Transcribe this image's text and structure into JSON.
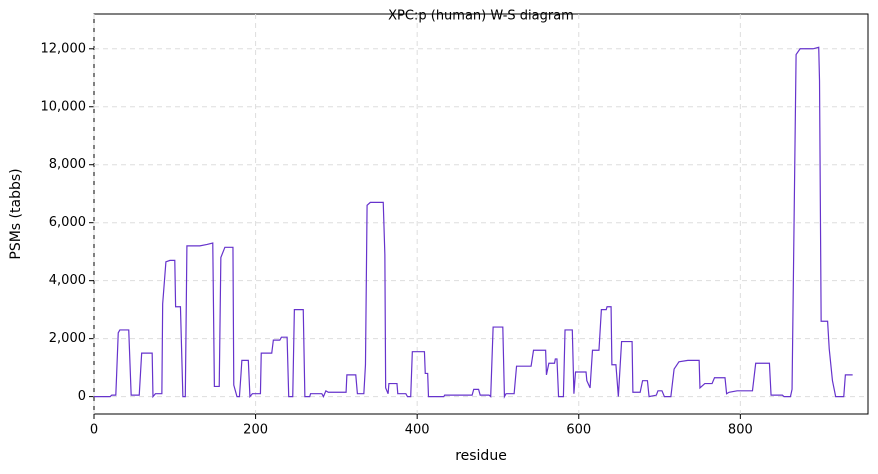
{
  "chart_data": {
    "type": "line",
    "title": "XPC:p (human) W-S diagram",
    "xlabel": "residue",
    "ylabel": "PSMs (tabbs)",
    "x": [
      0,
      20,
      22,
      27,
      28,
      30,
      32,
      43,
      46,
      56,
      59,
      72,
      73,
      76,
      84,
      85,
      89,
      94,
      100,
      101,
      107,
      110,
      113,
      115,
      131,
      140,
      147,
      149,
      155,
      157,
      162,
      172,
      173,
      177,
      180,
      182,
      183,
      191,
      193,
      196,
      206,
      207,
      220,
      222,
      230,
      232,
      239,
      241,
      246,
      248,
      259,
      261,
      267,
      268,
      282,
      284,
      287,
      290,
      312,
      313,
      324,
      326,
      334,
      336,
      338,
      342,
      358,
      360,
      361,
      364,
      365,
      375,
      376,
      386,
      388,
      392,
      394,
      409,
      410,
      413,
      414,
      433,
      434,
      468,
      470,
      476,
      478,
      489,
      491,
      494,
      506,
      508,
      510,
      520,
      523,
      541,
      544,
      559,
      560,
      563,
      570,
      571,
      573,
      575,
      581,
      583,
      592,
      594,
      596,
      609,
      610,
      614,
      617,
      625,
      628,
      634,
      635,
      640,
      641,
      646,
      649,
      653,
      666,
      667,
      676,
      679,
      685,
      687,
      696,
      698,
      703,
      706,
      714,
      718,
      724,
      735,
      749,
      750,
      756,
      765,
      768,
      781,
      783,
      786,
      796,
      815,
      819,
      836,
      838,
      852,
      854,
      862,
      864,
      869,
      874,
      890,
      897,
      898,
      900,
      908,
      910,
      914,
      918,
      928,
      930,
      939
    ],
    "values": [
      0,
      0,
      50,
      50,
      750,
      2200,
      2300,
      2300,
      50,
      50,
      1500,
      1500,
      0,
      100,
      100,
      3200,
      4650,
      4700,
      4700,
      3100,
      3100,
      0,
      0,
      5200,
      5200,
      5250,
      5300,
      350,
      350,
      4800,
      5150,
      5150,
      400,
      0,
      0,
      800,
      1250,
      1250,
      0,
      100,
      100,
      1500,
      1500,
      1950,
      1950,
      2050,
      2050,
      0,
      0,
      3000,
      3000,
      0,
      0,
      100,
      100,
      0,
      200,
      150,
      150,
      750,
      750,
      100,
      100,
      1100,
      6600,
      6700,
      6700,
      4900,
      300,
      100,
      450,
      450,
      100,
      100,
      0,
      0,
      1550,
      1550,
      800,
      800,
      0,
      0,
      50,
      50,
      250,
      250,
      50,
      50,
      0,
      2400,
      2400,
      0,
      100,
      100,
      1050,
      1050,
      1600,
      1600,
      750,
      1150,
      1150,
      1300,
      1300,
      0,
      0,
      2300,
      2300,
      100,
      850,
      850,
      550,
      300,
      1600,
      1600,
      3000,
      3000,
      3100,
      3100,
      1100,
      1100,
      0,
      1900,
      1900,
      150,
      150,
      550,
      550,
      0,
      50,
      200,
      200,
      0,
      0,
      950,
      1200,
      1250,
      1250,
      300,
      450,
      450,
      650,
      650,
      100,
      150,
      200,
      200,
      1150,
      1150,
      50,
      50,
      0,
      0,
      250,
      11800,
      12000,
      12000,
      12050,
      10900,
      2600,
      2600,
      1650,
      550,
      0,
      0,
      750,
      750
    ],
    "color": "#6633cc",
    "xlim": [
      0,
      958
    ],
    "xticks": [
      0,
      200,
      400,
      600,
      800
    ],
    "ylim": [
      -600,
      13200
    ],
    "yticks": [
      0,
      {
        "value": 2000,
        "label": "2,000"
      },
      {
        "value": 4000,
        "label": "4,000"
      },
      {
        "value": 6000,
        "label": "6,000"
      },
      {
        "value": 8000,
        "label": "8,000"
      },
      {
        "value": 10000,
        "label": "10,000"
      },
      {
        "value": 12000,
        "label": "12,000"
      }
    ],
    "grid": true
  }
}
